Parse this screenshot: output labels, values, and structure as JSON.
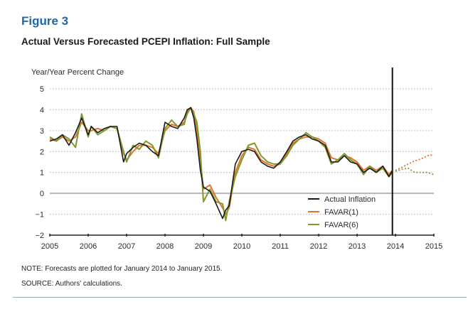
{
  "figure_label": "Figure 3",
  "figure_title": "Actual Versus Forecasted PCEPI Inflation: Full Sample",
  "note": "NOTE: Forecasts are plotted for January 2014 to January 2015.",
  "source": "SOURCE: Authors’ calculations.",
  "chart_data": {
    "type": "line",
    "title": "Actual Versus Forecasted PCEPI Inflation: Full Sample",
    "xlabel": "",
    "ylabel": "Year/Year Percent Change",
    "xlim": [
      2005,
      2015
    ],
    "ylim": [
      -2,
      5
    ],
    "x_ticks": [
      "2005",
      "2006",
      "2007",
      "2008",
      "2009",
      "2010",
      "2011",
      "2012",
      "2013",
      "2014",
      "2015"
    ],
    "y_ticks": [
      "5",
      "4",
      "3",
      "2",
      "1",
      "0",
      "−1",
      "−2"
    ],
    "grid": "horizontal dotted",
    "zero_line": true,
    "forecast_start_marker": 2013.92,
    "legend_position": "bottom-right",
    "legend": [
      "Actual Inflation",
      "FAVAR(1)",
      "FAVAR(6)"
    ],
    "colors": {
      "actual": "#1a1a1a",
      "favar1": "#e0742c",
      "favar6": "#7e9a2e",
      "grid": "#aaaaaa",
      "zero": "#b5b5b5"
    },
    "series": [
      {
        "name": "Actual Inflation",
        "key": "actual",
        "x": [
          2005.0,
          2005.17,
          2005.33,
          2005.5,
          2005.67,
          2005.83,
          2006.0,
          2006.08,
          2006.25,
          2006.42,
          2006.58,
          2006.75,
          2006.92,
          2007.0,
          2007.17,
          2007.33,
          2007.5,
          2007.67,
          2007.83,
          2008.0,
          2008.17,
          2008.33,
          2008.5,
          2008.58,
          2008.67,
          2008.75,
          2008.83,
          2008.92,
          2009.0,
          2009.17,
          2009.33,
          2009.5,
          2009.58,
          2009.67,
          2009.83,
          2010.0,
          2010.17,
          2010.33,
          2010.5,
          2010.67,
          2010.83,
          2011.0,
          2011.17,
          2011.33,
          2011.5,
          2011.67,
          2011.83,
          2012.0,
          2012.17,
          2012.33,
          2012.5,
          2012.67,
          2012.83,
          2013.0,
          2013.17,
          2013.33,
          2013.5,
          2013.67,
          2013.83,
          2013.92
        ],
        "values": [
          2.5,
          2.6,
          2.8,
          2.3,
          2.9,
          3.6,
          2.8,
          3.2,
          2.9,
          3.1,
          3.2,
          3.2,
          1.5,
          1.9,
          2.2,
          2.4,
          2.3,
          2.0,
          1.8,
          3.4,
          3.2,
          3.1,
          3.6,
          4.0,
          4.1,
          3.6,
          2.6,
          1.1,
          0.3,
          0.1,
          -0.5,
          -1.2,
          -0.8,
          -0.6,
          1.4,
          2.0,
          2.1,
          2.0,
          1.5,
          1.3,
          1.2,
          1.5,
          2.0,
          2.5,
          2.7,
          2.8,
          2.6,
          2.5,
          2.3,
          1.5,
          1.5,
          1.8,
          1.5,
          1.4,
          1.0,
          1.2,
          1.0,
          1.3,
          0.8,
          1.1
        ]
      },
      {
        "name": "FAVAR(1)",
        "key": "favar1",
        "x": [
          2005.0,
          2005.17,
          2005.33,
          2005.5,
          2005.67,
          2005.83,
          2006.0,
          2006.08,
          2006.25,
          2006.42,
          2006.58,
          2006.75,
          2006.92,
          2007.0,
          2007.17,
          2007.33,
          2007.5,
          2007.67,
          2007.83,
          2008.0,
          2008.17,
          2008.33,
          2008.5,
          2008.58,
          2008.67,
          2008.75,
          2008.83,
          2008.92,
          2009.0,
          2009.17,
          2009.33,
          2009.5,
          2009.58,
          2009.67,
          2009.83,
          2010.0,
          2010.17,
          2010.33,
          2010.5,
          2010.67,
          2010.83,
          2011.0,
          2011.17,
          2011.33,
          2011.5,
          2011.67,
          2011.83,
          2012.0,
          2012.17,
          2012.33,
          2012.5,
          2012.67,
          2012.83,
          2013.0,
          2013.17,
          2013.33,
          2013.5,
          2013.67,
          2013.83,
          2013.92
        ],
        "values": [
          2.6,
          2.5,
          2.7,
          2.5,
          2.7,
          3.4,
          3.0,
          3.0,
          3.1,
          3.0,
          3.2,
          3.1,
          1.9,
          1.6,
          2.0,
          2.3,
          2.3,
          2.2,
          1.9,
          3.0,
          3.3,
          3.2,
          3.4,
          3.8,
          4.1,
          3.9,
          3.0,
          1.6,
          0.2,
          0.4,
          -0.2,
          -0.7,
          -1.0,
          -0.7,
          1.0,
          1.8,
          2.2,
          2.1,
          1.6,
          1.4,
          1.3,
          1.4,
          1.9,
          2.4,
          2.6,
          2.7,
          2.7,
          2.6,
          2.4,
          1.7,
          1.6,
          1.8,
          1.7,
          1.5,
          1.1,
          1.3,
          1.1,
          1.3,
          0.9,
          1.1
        ]
      },
      {
        "name": "FAVAR(6)",
        "key": "favar6",
        "x": [
          2005.0,
          2005.17,
          2005.33,
          2005.5,
          2005.67,
          2005.83,
          2006.0,
          2006.08,
          2006.25,
          2006.42,
          2006.58,
          2006.75,
          2006.92,
          2007.0,
          2007.17,
          2007.33,
          2007.5,
          2007.67,
          2007.83,
          2008.0,
          2008.17,
          2008.33,
          2008.5,
          2008.58,
          2008.67,
          2008.75,
          2008.83,
          2008.92,
          2009.0,
          2009.17,
          2009.33,
          2009.5,
          2009.58,
          2009.67,
          2009.83,
          2010.0,
          2010.17,
          2010.33,
          2010.5,
          2010.67,
          2010.83,
          2011.0,
          2011.17,
          2011.33,
          2011.5,
          2011.67,
          2011.83,
          2012.0,
          2012.17,
          2012.33,
          2012.5,
          2012.67,
          2012.83,
          2013.0,
          2013.17,
          2013.33,
          2013.5,
          2013.67,
          2013.83,
          2013.92
        ],
        "values": [
          2.7,
          2.5,
          2.8,
          2.6,
          2.2,
          3.8,
          2.7,
          3.2,
          2.8,
          3.0,
          3.2,
          3.1,
          2.0,
          1.5,
          2.3,
          2.1,
          2.5,
          2.3,
          1.7,
          3.1,
          3.5,
          3.2,
          3.3,
          3.9,
          4.1,
          3.8,
          3.4,
          2.0,
          -0.4,
          0.2,
          -0.4,
          -0.5,
          -1.3,
          -0.4,
          0.8,
          1.6,
          2.3,
          2.4,
          1.8,
          1.5,
          1.4,
          1.4,
          1.8,
          2.3,
          2.6,
          2.9,
          2.7,
          2.5,
          2.2,
          1.4,
          1.6,
          1.9,
          1.6,
          1.4,
          0.9,
          1.3,
          1.0,
          1.2,
          0.8,
          1.0
        ]
      }
    ],
    "forecasts": [
      {
        "name": "FAVAR(1) forecast",
        "key": "favar1",
        "x": [
          2014.0,
          2014.17,
          2014.33,
          2014.5,
          2014.67,
          2014.83,
          2015.0
        ],
        "values": [
          1.1,
          1.25,
          1.4,
          1.55,
          1.65,
          1.8,
          1.85
        ]
      },
      {
        "name": "FAVAR(6) forecast",
        "key": "favar6",
        "x": [
          2014.0,
          2014.17,
          2014.33,
          2014.5,
          2014.67,
          2014.83,
          2015.0
        ],
        "values": [
          1.05,
          1.15,
          1.2,
          1.0,
          1.0,
          1.0,
          0.9
        ]
      }
    ]
  }
}
